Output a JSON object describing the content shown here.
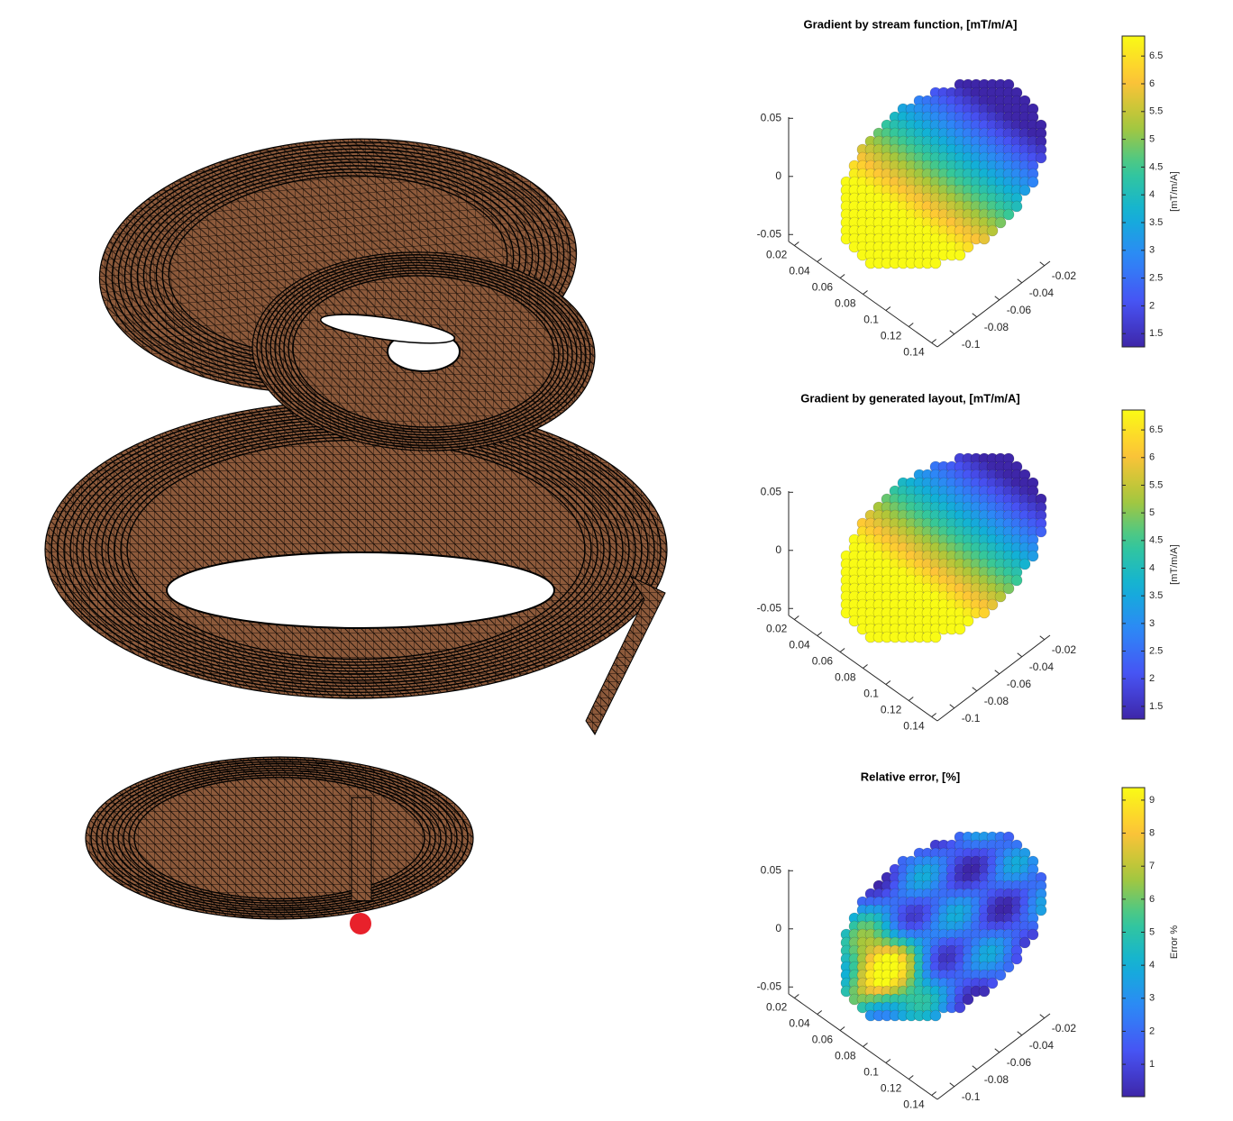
{
  "chart_data": [
    {
      "type": "scatter3d",
      "title": "Gradient by stream function, [mT/m/A]",
      "colormap": "parula",
      "xlim": [
        0.015,
        0.145
      ],
      "xticks": [
        0.02,
        0.04,
        0.06,
        0.08,
        0.1,
        0.12,
        0.14
      ],
      "ylim": [
        -0.115,
        -0.015
      ],
      "yticks": [
        -0.1,
        -0.08,
        -0.06,
        -0.04,
        -0.02
      ],
      "zlim": [
        -0.056,
        0.051
      ],
      "zticks": [
        -0.05,
        0,
        0.05
      ],
      "colorbar": {
        "label": "[mT/m/A]",
        "clim": [
          1.26,
          6.86
        ],
        "ticks": [
          1.5,
          2,
          2.5,
          3,
          3.5,
          4,
          4.5,
          5,
          5.5,
          6,
          6.5
        ]
      }
    },
    {
      "type": "scatter3d",
      "title": "Gradient by generated layout, [mT/m/A]",
      "colormap": "parula",
      "xlim": [
        0.015,
        0.145
      ],
      "xticks": [
        0.02,
        0.04,
        0.06,
        0.08,
        0.1,
        0.12,
        0.14
      ],
      "ylim": [
        -0.115,
        -0.015
      ],
      "yticks": [
        -0.1,
        -0.08,
        -0.06,
        -0.04,
        -0.02
      ],
      "zlim": [
        -0.056,
        0.051
      ],
      "zticks": [
        -0.05,
        0,
        0.05
      ],
      "colorbar": {
        "label": "[mT/m/A]",
        "clim": [
          1.27,
          6.86
        ],
        "ticks": [
          1.5,
          2,
          2.5,
          3,
          3.5,
          4,
          4.5,
          5,
          5.5,
          6,
          6.5
        ]
      }
    },
    {
      "type": "scatter3d",
      "title": "Relative error, [%]",
      "colormap": "parula",
      "xlim": [
        0.015,
        0.145
      ],
      "xticks": [
        0.02,
        0.04,
        0.06,
        0.08,
        0.1,
        0.12,
        0.14
      ],
      "ylim": [
        -0.115,
        -0.015
      ],
      "yticks": [
        -0.1,
        -0.08,
        -0.06,
        -0.04,
        -0.02
      ],
      "zlim": [
        -0.056,
        0.051
      ],
      "zticks": [
        -0.05,
        0,
        0.05
      ],
      "colorbar": {
        "label": "Error %",
        "clim": [
          0.02,
          9.38
        ],
        "ticks": [
          1,
          2,
          3,
          4,
          5,
          6,
          7,
          8,
          9
        ]
      }
    }
  ]
}
